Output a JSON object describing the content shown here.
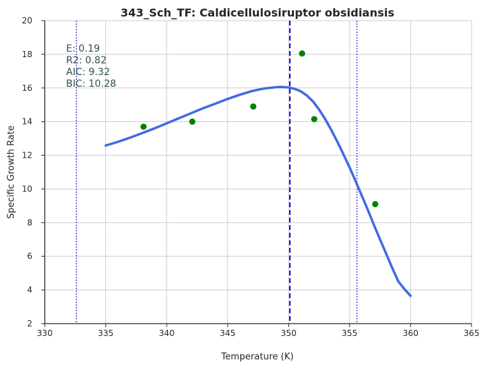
{
  "chart_data": {
    "type": "line",
    "title": "343_Sch_TF: Caldicellulosiruptor obsidiansis",
    "xlabel": "Temperature (K)",
    "ylabel": "Specific Growth Rate",
    "xlim": [
      330,
      365
    ],
    "ylim": [
      2,
      20
    ],
    "xticks": [
      330,
      335,
      340,
      345,
      350,
      355,
      360,
      365
    ],
    "yticks": [
      2,
      4,
      6,
      8,
      10,
      12,
      14,
      16,
      18,
      20
    ],
    "grid": true,
    "observations": {
      "color": "#008000",
      "x": [
        338.1,
        342.1,
        347.1,
        351.1,
        352.1,
        357.1
      ],
      "y": [
        13.7,
        14.0,
        14.9,
        18.05,
        14.15,
        9.1
      ]
    },
    "fit": {
      "color": "#4169E1",
      "x": [
        335,
        336,
        337,
        338,
        339,
        340,
        341,
        342,
        343,
        344,
        345,
        346,
        347,
        348,
        349,
        349.5,
        350,
        350.5,
        351,
        351.5,
        352,
        352.5,
        353,
        353.5,
        354,
        354.5,
        355,
        355.5,
        356,
        356.5,
        357,
        357.5,
        358,
        358.5,
        359,
        359.5,
        360
      ],
      "y": [
        12.58,
        12.8,
        13.05,
        13.32,
        13.6,
        13.9,
        14.2,
        14.5,
        14.8,
        15.07,
        15.35,
        15.6,
        15.82,
        15.97,
        16.05,
        16.06,
        16.03,
        15.95,
        15.8,
        15.55,
        15.2,
        14.72,
        14.15,
        13.5,
        12.8,
        12.05,
        11.28,
        10.45,
        9.6,
        8.75,
        7.85,
        7.0,
        6.15,
        5.3,
        4.5,
        4.05,
        3.65
      ]
    },
    "vlines": [
      {
        "x": 350.1,
        "style": "dashed",
        "color": "#0000ee"
      },
      {
        "x": 332.6,
        "style": "dotted",
        "color": "#4444ee"
      },
      {
        "x": 355.6,
        "style": "dotted",
        "color": "#4444ee"
      }
    ],
    "stats": [
      "E:  0.19",
      "R2:  0.82",
      "AIC: 9.32",
      "BIC: 10.28"
    ]
  }
}
